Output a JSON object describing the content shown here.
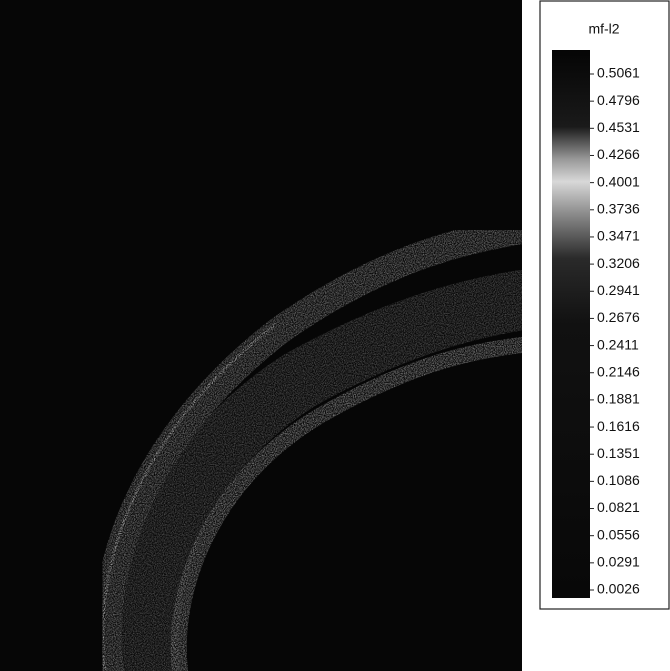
{
  "chart_data": {
    "type": "contour",
    "colorbar": {
      "title": "mf-l2",
      "lim": [
        0.0026,
        0.5061
      ],
      "ticks": [
        0.5061,
        0.4796,
        0.4531,
        0.4266,
        0.4001,
        0.3736,
        0.3471,
        0.3206,
        0.2941,
        0.2676,
        0.2411,
        0.2146,
        0.1881,
        0.1616,
        0.1351,
        0.1086,
        0.0821,
        0.0556,
        0.0291,
        0.0026
      ]
    }
  }
}
